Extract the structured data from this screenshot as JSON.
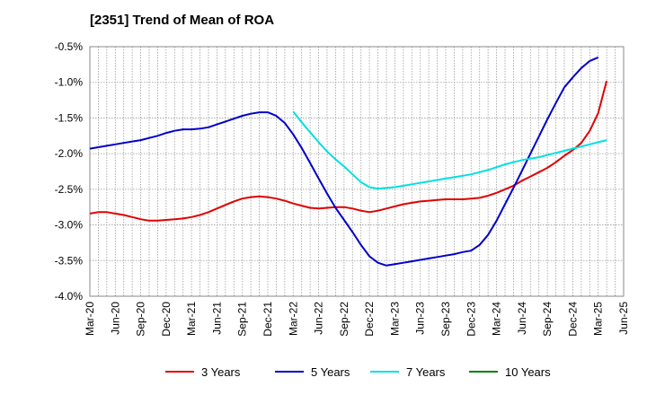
{
  "chart_data": {
    "type": "line",
    "title": "[2351]  Trend of Mean of ROA",
    "xlabel": "",
    "ylabel": "",
    "ylim": [
      -4.0,
      -0.5
    ],
    "grid": true,
    "legend_position": "bottom",
    "x_tick_labels": [
      "Mar-20",
      "Jun-20",
      "Sep-20",
      "Dec-20",
      "Mar-21",
      "Jun-21",
      "Sep-21",
      "Dec-21",
      "Mar-22",
      "Jun-22",
      "Sep-22",
      "Dec-22",
      "Mar-23",
      "Jun-23",
      "Sep-23",
      "Dec-23",
      "Mar-24",
      "Jun-24",
      "Sep-24",
      "Dec-24",
      "Mar-25",
      "Jun-25"
    ],
    "y_tick_labels": [
      "-0.5%",
      "-1.0%",
      "-1.5%",
      "-2.0%",
      "-2.5%",
      "-3.0%",
      "-3.5%",
      "-4.0%"
    ],
    "y_ticks": [
      -0.5,
      -1.0,
      -1.5,
      -2.0,
      -2.5,
      -3.0,
      -3.5,
      -4.0
    ],
    "series": [
      {
        "name": "3 Years",
        "color": "#e00000",
        "points": [
          [
            "Mar-20",
            -2.84
          ],
          [
            "Apr-20",
            -2.82
          ],
          [
            "May-20",
            -2.82
          ],
          [
            "Jun-20",
            -2.84
          ],
          [
            "Jul-20",
            -2.86
          ],
          [
            "Aug-20",
            -2.89
          ],
          [
            "Sep-20",
            -2.92
          ],
          [
            "Oct-20",
            -2.94
          ],
          [
            "Nov-20",
            -2.94
          ],
          [
            "Dec-20",
            -2.93
          ],
          [
            "Jan-21",
            -2.92
          ],
          [
            "Feb-21",
            -2.91
          ],
          [
            "Mar-21",
            -2.89
          ],
          [
            "Apr-21",
            -2.86
          ],
          [
            "May-21",
            -2.82
          ],
          [
            "Jun-21",
            -2.77
          ],
          [
            "Jul-21",
            -2.72
          ],
          [
            "Aug-21",
            -2.67
          ],
          [
            "Sep-21",
            -2.63
          ],
          [
            "Oct-21",
            -2.61
          ],
          [
            "Nov-21",
            -2.6
          ],
          [
            "Dec-21",
            -2.61
          ],
          [
            "Jan-22",
            -2.63
          ],
          [
            "Feb-22",
            -2.66
          ],
          [
            "Mar-22",
            -2.7
          ],
          [
            "Apr-22",
            -2.73
          ],
          [
            "May-22",
            -2.76
          ],
          [
            "Jun-22",
            -2.77
          ],
          [
            "Jul-22",
            -2.76
          ],
          [
            "Aug-22",
            -2.75
          ],
          [
            "Sep-22",
            -2.75
          ],
          [
            "Oct-22",
            -2.77
          ],
          [
            "Nov-22",
            -2.8
          ],
          [
            "Dec-22",
            -2.82
          ],
          [
            "Jan-23",
            -2.8
          ],
          [
            "Feb-23",
            -2.77
          ],
          [
            "Mar-23",
            -2.74
          ],
          [
            "Apr-23",
            -2.71
          ],
          [
            "May-23",
            -2.69
          ],
          [
            "Jun-23",
            -2.67
          ],
          [
            "Jul-23",
            -2.66
          ],
          [
            "Aug-23",
            -2.65
          ],
          [
            "Sep-23",
            -2.64
          ],
          [
            "Oct-23",
            -2.64
          ],
          [
            "Nov-23",
            -2.64
          ],
          [
            "Dec-23",
            -2.63
          ],
          [
            "Jan-24",
            -2.62
          ],
          [
            "Feb-24",
            -2.59
          ],
          [
            "Mar-24",
            -2.55
          ],
          [
            "Apr-24",
            -2.5
          ],
          [
            "May-24",
            -2.45
          ],
          [
            "Jun-24",
            -2.38
          ],
          [
            "Jul-24",
            -2.32
          ],
          [
            "Aug-24",
            -2.26
          ],
          [
            "Sep-24",
            -2.2
          ],
          [
            "Oct-24",
            -2.12
          ],
          [
            "Nov-24",
            -2.03
          ],
          [
            "Dec-24",
            -1.95
          ],
          [
            "Jan-25",
            -1.85
          ],
          [
            "Feb-25",
            -1.68
          ],
          [
            "Mar-25",
            -1.43
          ],
          [
            "Apr-25",
            -0.98
          ]
        ]
      },
      {
        "name": "5 Years",
        "color": "#0000cc",
        "points": [
          [
            "Mar-20",
            -1.93
          ],
          [
            "Apr-20",
            -1.91
          ],
          [
            "May-20",
            -1.89
          ],
          [
            "Jun-20",
            -1.87
          ],
          [
            "Jul-20",
            -1.85
          ],
          [
            "Aug-20",
            -1.83
          ],
          [
            "Sep-20",
            -1.81
          ],
          [
            "Oct-20",
            -1.78
          ],
          [
            "Nov-20",
            -1.75
          ],
          [
            "Dec-20",
            -1.71
          ],
          [
            "Jan-21",
            -1.68
          ],
          [
            "Feb-21",
            -1.66
          ],
          [
            "Mar-21",
            -1.66
          ],
          [
            "Apr-21",
            -1.65
          ],
          [
            "May-21",
            -1.63
          ],
          [
            "Jun-21",
            -1.59
          ],
          [
            "Jul-21",
            -1.55
          ],
          [
            "Aug-21",
            -1.51
          ],
          [
            "Sep-21",
            -1.47
          ],
          [
            "Oct-21",
            -1.44
          ],
          [
            "Nov-21",
            -1.42
          ],
          [
            "Dec-21",
            -1.42
          ],
          [
            "Jan-22",
            -1.47
          ],
          [
            "Feb-22",
            -1.57
          ],
          [
            "Mar-22",
            -1.73
          ],
          [
            "Apr-22",
            -1.92
          ],
          [
            "May-22",
            -2.13
          ],
          [
            "Jun-22",
            -2.35
          ],
          [
            "Jul-22",
            -2.56
          ],
          [
            "Aug-22",
            -2.76
          ],
          [
            "Sep-22",
            -2.93
          ],
          [
            "Oct-22",
            -3.1
          ],
          [
            "Nov-22",
            -3.28
          ],
          [
            "Dec-22",
            -3.44
          ],
          [
            "Jan-23",
            -3.53
          ],
          [
            "Feb-23",
            -3.57
          ],
          [
            "Mar-23",
            -3.55
          ],
          [
            "Apr-23",
            -3.53
          ],
          [
            "May-23",
            -3.51
          ],
          [
            "Jun-23",
            -3.49
          ],
          [
            "Jul-23",
            -3.47
          ],
          [
            "Aug-23",
            -3.45
          ],
          [
            "Sep-23",
            -3.43
          ],
          [
            "Oct-23",
            -3.41
          ],
          [
            "Nov-23",
            -3.38
          ],
          [
            "Dec-23",
            -3.36
          ],
          [
            "Jan-24",
            -3.28
          ],
          [
            "Feb-24",
            -3.14
          ],
          [
            "Mar-24",
            -2.94
          ],
          [
            "Apr-24",
            -2.71
          ],
          [
            "May-24",
            -2.48
          ],
          [
            "Jun-24",
            -2.24
          ],
          [
            "Jul-24",
            -2.0
          ],
          [
            "Aug-24",
            -1.76
          ],
          [
            "Sep-24",
            -1.52
          ],
          [
            "Oct-24",
            -1.29
          ],
          [
            "Nov-24",
            -1.07
          ],
          [
            "Dec-24",
            -0.93
          ],
          [
            "Jan-25",
            -0.8
          ],
          [
            "Feb-25",
            -0.7
          ],
          [
            "Mar-25",
            -0.65
          ]
        ]
      },
      {
        "name": "7 Years",
        "color": "#00e0e0",
        "points": [
          [
            "Mar-22",
            -1.41
          ],
          [
            "Apr-22",
            -1.56
          ],
          [
            "May-22",
            -1.7
          ],
          [
            "Jun-22",
            -1.84
          ],
          [
            "Jul-22",
            -1.97
          ],
          [
            "Aug-22",
            -2.08
          ],
          [
            "Sep-22",
            -2.18
          ],
          [
            "Oct-22",
            -2.29
          ],
          [
            "Nov-22",
            -2.4
          ],
          [
            "Dec-22",
            -2.47
          ],
          [
            "Jan-23",
            -2.49
          ],
          [
            "Feb-23",
            -2.48
          ],
          [
            "Mar-23",
            -2.47
          ],
          [
            "Apr-23",
            -2.45
          ],
          [
            "May-23",
            -2.43
          ],
          [
            "Jun-23",
            -2.41
          ],
          [
            "Jul-23",
            -2.39
          ],
          [
            "Aug-23",
            -2.37
          ],
          [
            "Sep-23",
            -2.35
          ],
          [
            "Oct-23",
            -2.33
          ],
          [
            "Nov-23",
            -2.31
          ],
          [
            "Dec-23",
            -2.29
          ],
          [
            "Jan-24",
            -2.26
          ],
          [
            "Feb-24",
            -2.23
          ],
          [
            "Mar-24",
            -2.19
          ],
          [
            "Apr-24",
            -2.15
          ],
          [
            "May-24",
            -2.12
          ],
          [
            "Jun-24",
            -2.09
          ],
          [
            "Jul-24",
            -2.07
          ],
          [
            "Aug-24",
            -2.05
          ],
          [
            "Sep-24",
            -2.02
          ],
          [
            "Oct-24",
            -1.99
          ],
          [
            "Nov-24",
            -1.96
          ],
          [
            "Dec-24",
            -1.93
          ],
          [
            "Jan-25",
            -1.9
          ],
          [
            "Feb-25",
            -1.87
          ],
          [
            "Mar-25",
            -1.84
          ],
          [
            "Apr-25",
            -1.81
          ]
        ]
      },
      {
        "name": "10 Years",
        "color": "#008000",
        "points": []
      }
    ]
  }
}
